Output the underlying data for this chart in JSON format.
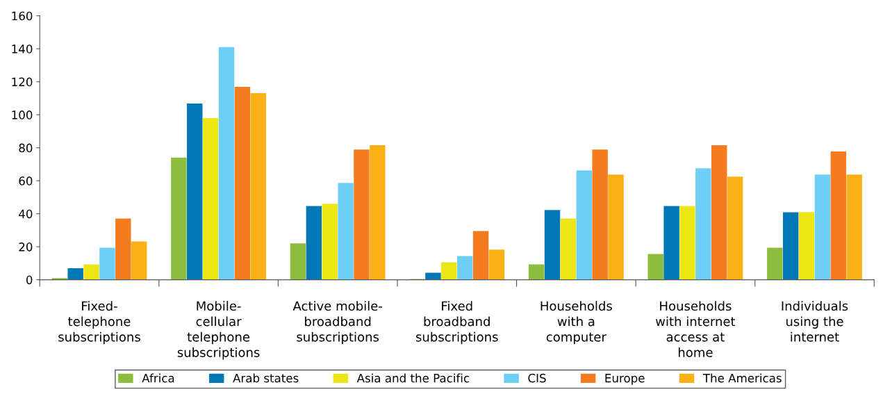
{
  "chart_data": {
    "type": "bar",
    "categories": [
      "Fixed-\ntelephone\nsubscriptions",
      "Mobile-\ncellular\ntelephone\nsubscriptions",
      "Active mobile-\nbroadband\nsubscriptions",
      "Fixed\nbroadband\nsubscriptions",
      "Households\nwith a\ncomputer",
      "Households\nwith internet\naccess at\nhome",
      "Individuals\nusing the\ninternet"
    ],
    "series": [
      {
        "name": "Africa",
        "color": "#8dbd3c",
        "values": [
          1,
          74,
          22,
          0.5,
          9.3,
          15.6,
          19.4
        ]
      },
      {
        "name": "Arab states",
        "color": "#0077b6",
        "values": [
          7,
          106.8,
          44.7,
          4.2,
          42.2,
          44.7,
          40.9
        ]
      },
      {
        "name": "Asia and the Pacific",
        "color": "#ede617",
        "values": [
          9.3,
          97.9,
          46,
          10.6,
          37.1,
          44.7,
          41
        ]
      },
      {
        "name": "CIS",
        "color": "#6dcff6",
        "values": [
          19.4,
          141,
          58.7,
          14.4,
          66.3,
          67.5,
          63.7
        ]
      },
      {
        "name": "Europe",
        "color": "#f47b20",
        "values": [
          37.1,
          116.9,
          78.9,
          29.5,
          78.9,
          81.5,
          77.7
        ]
      },
      {
        "name": "The Americas",
        "color": "#fbb116",
        "values": [
          23.2,
          113.1,
          81.5,
          18.2,
          63.7,
          62.5,
          63.7
        ]
      }
    ],
    "ylim": [
      0,
      160
    ],
    "yticks": [
      0,
      20,
      40,
      60,
      80,
      100,
      120,
      140,
      160
    ],
    "grid": false,
    "legend": "bottom"
  }
}
